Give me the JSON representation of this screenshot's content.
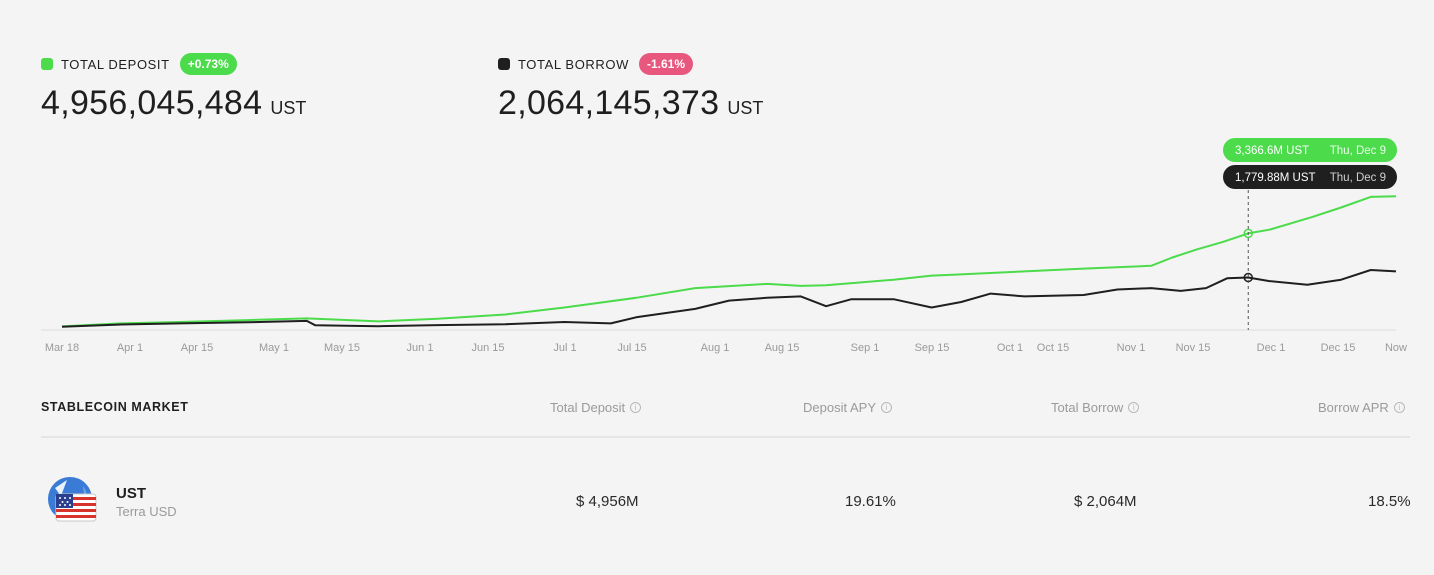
{
  "summary": {
    "deposit": {
      "label": "TOTAL DEPOSIT",
      "change": "+0.73%",
      "value": "4,956,045,484",
      "unit": "UST",
      "color": "#4bdb4b"
    },
    "borrow": {
      "label": "TOTAL BORROW",
      "change": "-1.61%",
      "value": "2,064,145,373",
      "unit": "UST",
      "color": "#1f1f1f",
      "badge_color": "#e8577e"
    }
  },
  "chart_data": {
    "type": "line",
    "x_tick_labels": [
      "Mar 18",
      "Apr 1",
      "Apr 15",
      "May 1",
      "May 15",
      "Jun 1",
      "Jun 15",
      "Jul 1",
      "Jul 15",
      "Aug 1",
      "Aug 15",
      "Sep 1",
      "Sep 15",
      "Oct 1",
      "Oct 15",
      "Nov 1",
      "Nov 15",
      "Dec 1",
      "Dec 15",
      "Now"
    ],
    "series": [
      {
        "key": "deposit",
        "color": "#4bdb4b",
        "values": [
          [
            0,
            20
          ],
          [
            14,
            130
          ],
          [
            28,
            180
          ],
          [
            44,
            250
          ],
          [
            58,
            310
          ],
          [
            75,
            200
          ],
          [
            89,
            300
          ],
          [
            105,
            450
          ],
          [
            119,
            700
          ],
          [
            136,
            1050
          ],
          [
            150,
            1400
          ],
          [
            167,
            1550
          ],
          [
            175,
            1480
          ],
          [
            181,
            1500
          ],
          [
            197,
            1700
          ],
          [
            206,
            1850
          ],
          [
            211,
            1880
          ],
          [
            228,
            2000
          ],
          [
            242,
            2100
          ],
          [
            258,
            2200
          ],
          [
            263,
            2500
          ],
          [
            269,
            2800
          ],
          [
            275,
            3060
          ],
          [
            281,
            3366.6
          ],
          [
            286,
            3500
          ],
          [
            296,
            3950
          ],
          [
            303,
            4300
          ],
          [
            310,
            4680
          ],
          [
            316,
            4700
          ]
        ]
      },
      {
        "key": "borrow",
        "color": "#1f1f1f",
        "values": [
          [
            0,
            10
          ],
          [
            14,
            90
          ],
          [
            28,
            130
          ],
          [
            44,
            170
          ],
          [
            58,
            220
          ],
          [
            60,
            60
          ],
          [
            75,
            30
          ],
          [
            89,
            70
          ],
          [
            105,
            100
          ],
          [
            119,
            180
          ],
          [
            130,
            130
          ],
          [
            136,
            350
          ],
          [
            150,
            650
          ],
          [
            158,
            950
          ],
          [
            167,
            1050
          ],
          [
            175,
            1100
          ],
          [
            181,
            750
          ],
          [
            187,
            1000
          ],
          [
            197,
            1000
          ],
          [
            206,
            700
          ],
          [
            213,
            900
          ],
          [
            220,
            1200
          ],
          [
            228,
            1100
          ],
          [
            242,
            1150
          ],
          [
            250,
            1350
          ],
          [
            258,
            1400
          ],
          [
            265,
            1300
          ],
          [
            271,
            1400
          ],
          [
            276,
            1750
          ],
          [
            281,
            1779.88
          ],
          [
            286,
            1650
          ],
          [
            295,
            1520
          ],
          [
            303,
            1700
          ],
          [
            310,
            2050
          ],
          [
            316,
            2000
          ]
        ]
      }
    ],
    "tooltip": {
      "deposit": {
        "value": "3,366.6M UST",
        "date": "Thu, Dec 9"
      },
      "borrow": {
        "value": "1,779.88M UST",
        "date": "Thu, Dec 9"
      }
    },
    "grid": false,
    "legend": "none"
  },
  "market": {
    "title": "STABLECOIN MARKET",
    "columns": [
      "Total Deposit",
      "Deposit APY",
      "Total Borrow",
      "Borrow APR"
    ],
    "rows": [
      {
        "symbol": "UST",
        "name": "Terra USD",
        "total_deposit": "$ 4,956M",
        "deposit_apy": "19.61%",
        "total_borrow": "$ 2,064M",
        "borrow_apr": "18.5%",
        "icon": "terra-ust-icon"
      }
    ]
  }
}
